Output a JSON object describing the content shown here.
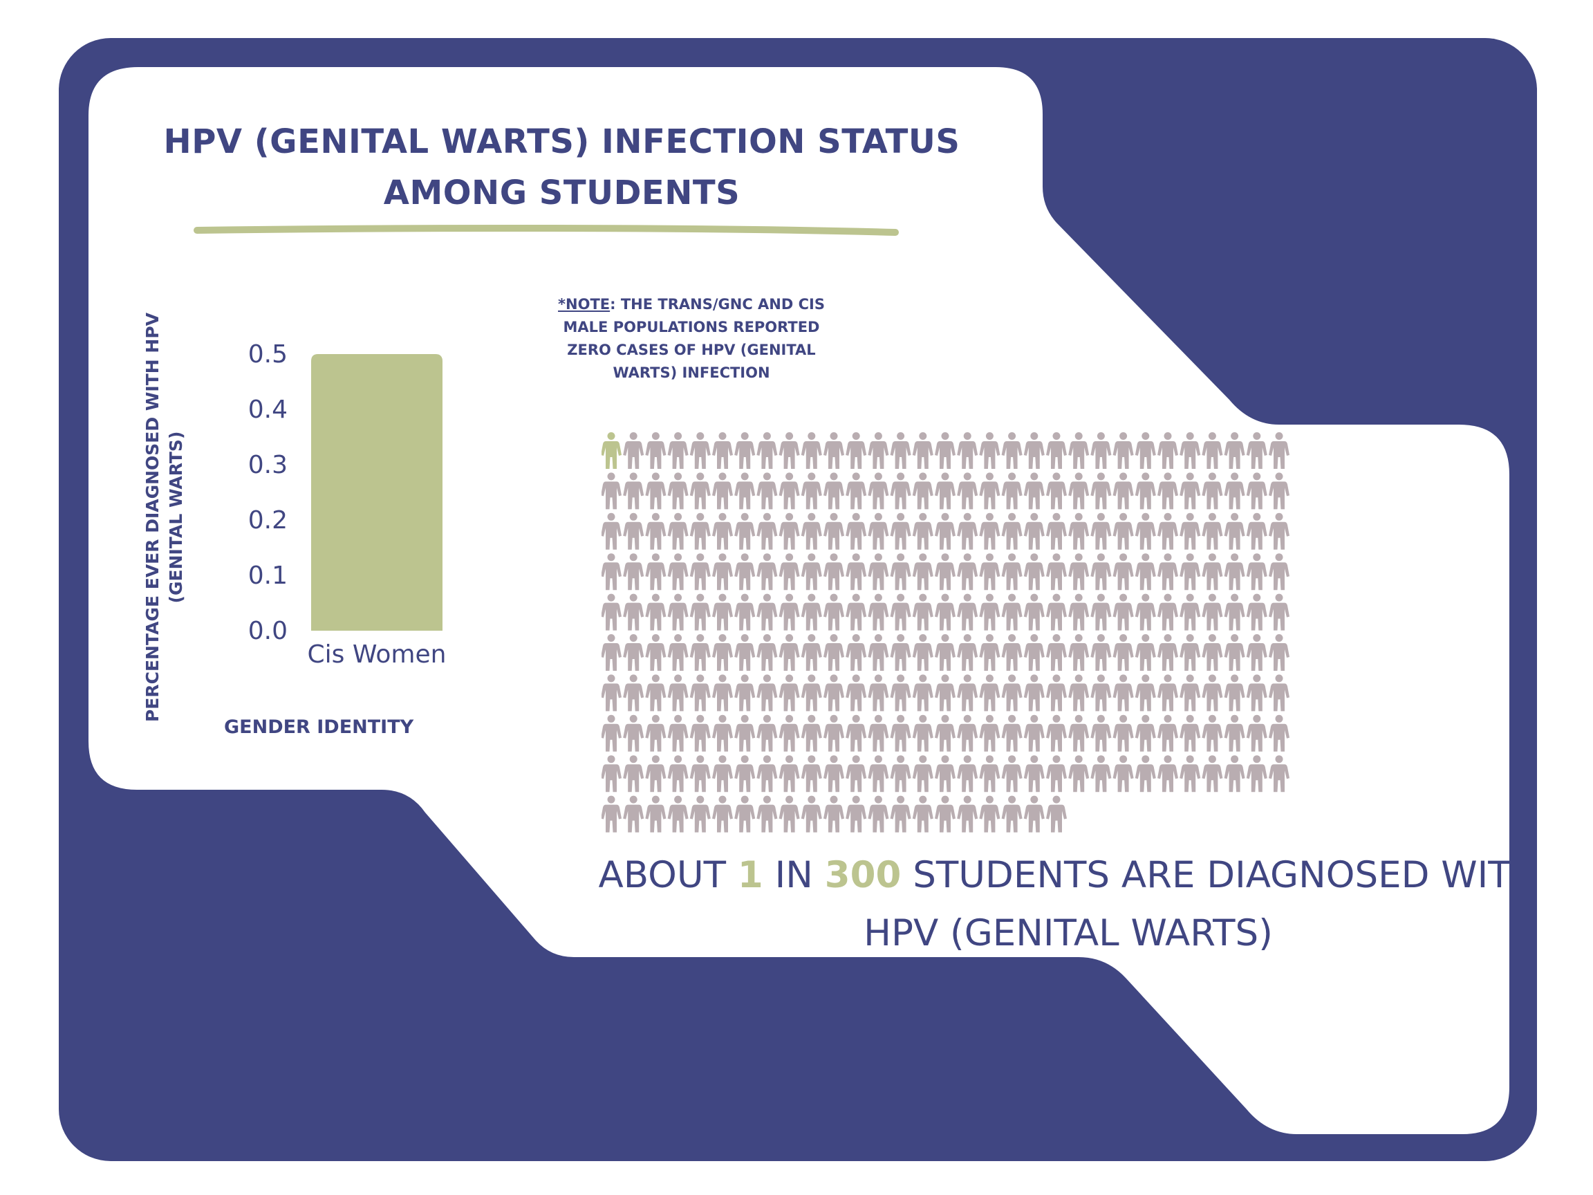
{
  "colors": {
    "navy": "#404682",
    "green": "#bcc48f",
    "figure_gray": "#b9adb1",
    "white": "#ffffff"
  },
  "title": "HPV (GENITAL WARTS) INFECTION STATUS AMONG STUDENTS",
  "note": {
    "lead": "*NOTE",
    "text": ": THE TRANS/GNC AND CIS MALE POPULATIONS REPORTED ZERO CASES OF HPV (GENITAL WARTS) INFECTION"
  },
  "chart_data": {
    "type": "bar",
    "categories": [
      "Cis Women"
    ],
    "values": [
      0.5
    ],
    "ylabel": "PERCENTAGE EVER DIAGNOSED WITH HPV (GENITAL WARTS)",
    "xlabel": "GENDER IDENTITY",
    "ylim": [
      0,
      0.5
    ],
    "yticks": [
      "0.0",
      "0.1",
      "0.2",
      "0.3",
      "0.4",
      "0.5"
    ],
    "grid": false
  },
  "pictogram": {
    "total": 300,
    "highlighted": 1,
    "icon": "person-icon"
  },
  "summary": {
    "part1": "ABOUT ",
    "num1": "1",
    "part2": " IN ",
    "num2": "300",
    "part3": " STUDENTS ARE DIAGNOSED WITH HPV (GENITAL WARTS)"
  }
}
